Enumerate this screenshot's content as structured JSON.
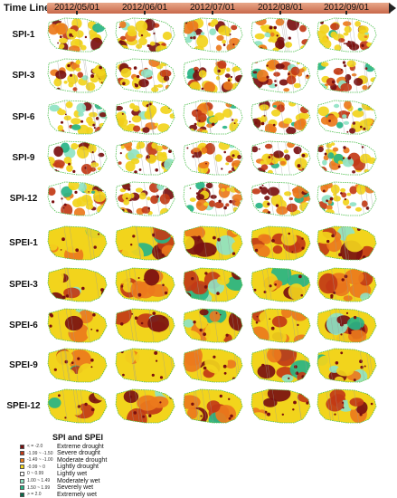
{
  "timeline": {
    "label": "Time Line",
    "dates": [
      "2012/05/01",
      "2012/06/01",
      "2012/07/01",
      "2012/08/01",
      "2012/09/01"
    ]
  },
  "indices": [
    "SPI-1",
    "SPI-3",
    "SPI-6",
    "SPI-9",
    "SPI-12",
    "SPEI-1",
    "SPEI-3",
    "SPEI-6",
    "SPEI-9",
    "SPEI-12"
  ],
  "legend": {
    "title": "SPI and SPEI",
    "items": [
      {
        "range": "< = -2.0",
        "label": "Extreme drought",
        "color": "#7a1010"
      },
      {
        "range": "-1.99 ~ -1.50",
        "label": "Severe drought",
        "color": "#c23a16"
      },
      {
        "range": "-1.49 ~ -1.00",
        "label": "Moderate drought",
        "color": "#ec7a1c"
      },
      {
        "range": "-0.99 ~ 0",
        "label": "Lightly drought",
        "color": "#f2d41c"
      },
      {
        "range": "0 ~ 0.99",
        "label": "Lightly wet",
        "color": "#ffffff"
      },
      {
        "range": "1.00 ~ 1.49",
        "label": "Moderately wet",
        "color": "#8fe3c4"
      },
      {
        "range": "1.50 ~ 1.99",
        "label": "Severely wet",
        "color": "#28b486"
      },
      {
        "range": "> = 2.0",
        "label": "Extremely wet",
        "color": "#0a6a4a"
      }
    ]
  },
  "palette": {
    "extreme": "#7a1010",
    "severe": "#c23a16",
    "moderate": "#ec7a1c",
    "light": "#f2d41c",
    "wet1": "#8fe3c4",
    "wet2": "#28b486",
    "border": "#9a9a9a",
    "boundary": "#4cbf4c"
  }
}
